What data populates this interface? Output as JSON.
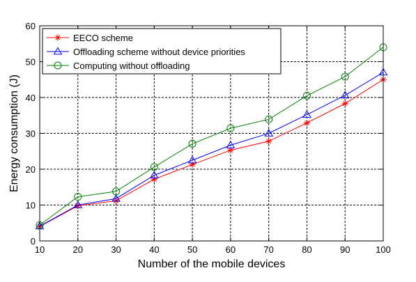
{
  "chart_data": {
    "type": "line",
    "title": "",
    "xlabel": "Number of the mobile devices",
    "ylabel": "Energy consumption (J)",
    "x": [
      10,
      20,
      30,
      40,
      50,
      60,
      70,
      80,
      90,
      100
    ],
    "xlim": [
      10,
      100
    ],
    "ylim": [
      0,
      60
    ],
    "xticks": [
      10,
      20,
      30,
      40,
      50,
      60,
      70,
      80,
      90,
      100
    ],
    "yticks": [
      0,
      10,
      20,
      30,
      40,
      50,
      60
    ],
    "grid": true,
    "legend_position": "top-left",
    "series": [
      {
        "name": "EECO scheme",
        "color": "#ff0000",
        "marker": "asterisk",
        "values": [
          4.0,
          9.8,
          11.2,
          17.2,
          21.3,
          25.3,
          27.8,
          32.9,
          38.3,
          45.0
        ]
      },
      {
        "name": "Offloading scheme without device priorities",
        "color": "#0000ff",
        "marker": "triangle",
        "values": [
          4.1,
          10.0,
          11.8,
          18.3,
          22.5,
          26.7,
          30.0,
          35.2,
          40.6,
          47.0
        ]
      },
      {
        "name": "Computing without offloading",
        "color": "#008000",
        "marker": "circle",
        "values": [
          4.4,
          12.3,
          13.8,
          20.6,
          27.1,
          31.4,
          33.9,
          40.5,
          45.8,
          54.0
        ]
      }
    ]
  }
}
